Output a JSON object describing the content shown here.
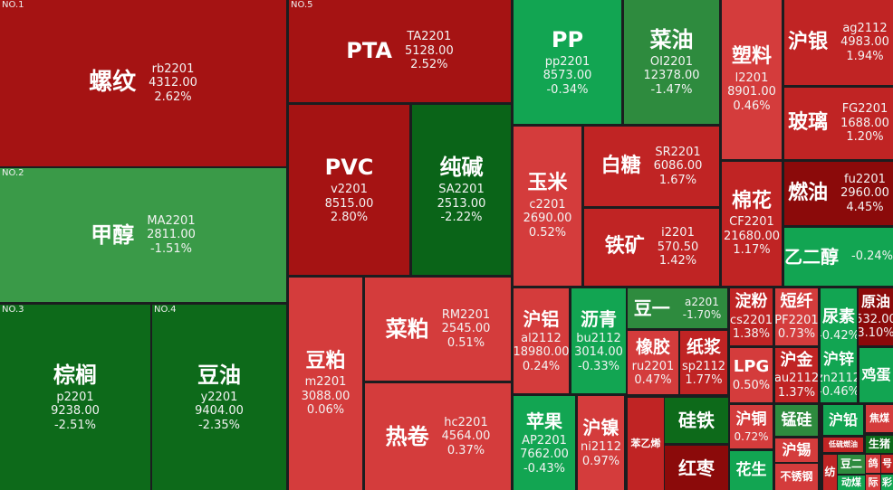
{
  "colors": {
    "deep_red": "#a51313",
    "red": "#d43c3c",
    "mid_red": "#c02424",
    "dark_red": "#8b0a0a",
    "dark_green": "#0d6a1a",
    "green": "#2e8b3e",
    "bright_green": "#12a552",
    "background": "#1b1d1f"
  },
  "cells": [
    {
      "rank": "NO.1",
      "name": "螺纹",
      "code": "rb2201",
      "price": "4312.00",
      "change": "2.62%",
      "color": "#a51313"
    },
    {
      "rank": "NO.2",
      "name": "甲醇",
      "code": "MA2201",
      "price": "2811.00",
      "change": "-1.51%",
      "color": "#3a9a48"
    },
    {
      "rank": "NO.3",
      "name": "棕榈",
      "code": "p2201",
      "price": "9238.00",
      "change": "-2.51%",
      "color": "#0d6a1a"
    },
    {
      "rank": "NO.4",
      "name": "豆油",
      "code": "y2201",
      "price": "9404.00",
      "change": "-2.35%",
      "color": "#0d6a1a"
    },
    {
      "rank": "NO.5",
      "name": "PTA",
      "code": "TA2201",
      "price": "5128.00",
      "change": "2.52%",
      "color": "#a51313"
    },
    {
      "name": "PVC",
      "code": "v2201",
      "price": "8515.00",
      "change": "2.80%",
      "color": "#a51313"
    },
    {
      "name": "纯碱",
      "code": "SA2201",
      "price": "2513.00",
      "change": "-2.22%",
      "color": "#0a6418"
    },
    {
      "name": "豆粕",
      "code": "m2201",
      "price": "3088.00",
      "change": "0.06%",
      "color": "#d43c3c"
    },
    {
      "name": "菜粕",
      "code": "RM2201",
      "price": "2545.00",
      "change": "0.51%",
      "color": "#d43c3c"
    },
    {
      "name": "热卷",
      "code": "hc2201",
      "price": "4564.00",
      "change": "0.37%",
      "color": "#d43c3c"
    },
    {
      "name": "PP",
      "code": "pp2201",
      "price": "8573.00",
      "change": "-0.34%",
      "color": "#12a552"
    },
    {
      "name": "菜油",
      "code": "OI2201",
      "price": "12378.00",
      "change": "-1.47%",
      "color": "#2e8b3e"
    },
    {
      "name": "塑料",
      "code": "l2201",
      "price": "8901.00",
      "change": "0.46%",
      "color": "#d43c3c"
    },
    {
      "name": "沪银",
      "code": "ag2112",
      "price": "4983.00",
      "change": "1.94%",
      "color": "#c02424"
    },
    {
      "name": "玻璃",
      "code": "FG2201",
      "price": "1688.00",
      "change": "1.20%",
      "color": "#c02424"
    },
    {
      "name": "玉米",
      "code": "c2201",
      "price": "2690.00",
      "change": "0.52%",
      "color": "#d43c3c"
    },
    {
      "name": "白糖",
      "code": "SR2201",
      "price": "6086.00",
      "change": "1.67%",
      "color": "#c02424"
    },
    {
      "name": "铁矿",
      "code": "i2201",
      "price": "570.50",
      "change": "1.42%",
      "color": "#c02424"
    },
    {
      "name": "棉花",
      "code": "CF2201",
      "price": "21680.00",
      "change": "1.17%",
      "color": "#c02424"
    },
    {
      "name": "燃油",
      "code": "fu2201",
      "price": "2960.00",
      "change": "4.45%",
      "color": "#8b0a0a"
    },
    {
      "name": "乙二醇",
      "change": "-0.24%",
      "color": "#12a552"
    },
    {
      "name": "沪铝",
      "code": "al2112",
      "price": "18980.00",
      "change": "0.24%",
      "color": "#d43c3c"
    },
    {
      "name": "沥青",
      "code": "bu2112",
      "price": "3014.00",
      "change": "-0.33%",
      "color": "#12a552"
    },
    {
      "name": "苹果",
      "code": "AP2201",
      "price": "7662.00",
      "change": "-0.43%",
      "color": "#12a552"
    },
    {
      "name": "沪镍",
      "code": "ni2112",
      "change": "0.97%",
      "color": "#d43c3c"
    },
    {
      "name": "豆一",
      "code": "a2201",
      "change": "-1.70%",
      "color": "#2e8b3e"
    },
    {
      "name": "橡胶",
      "code": "ru2201",
      "change": "0.47%",
      "color": "#d43c3c"
    },
    {
      "name": "纸浆",
      "code": "sp2112",
      "change": "1.77%",
      "color": "#c02424"
    },
    {
      "name": "淀粉",
      "code": "cs2201",
      "change": "1.38%",
      "color": "#c02424"
    },
    {
      "name": "短纤",
      "code": "PF2201",
      "change": "0.73%",
      "color": "#d43c3c"
    },
    {
      "name": "尿素",
      "change": "-0.42%",
      "color": "#12a552"
    },
    {
      "name": "原油",
      "price": "532.00",
      "change": "3.10%",
      "color": "#8b0a0a"
    },
    {
      "name": "LPG",
      "change": "0.50%",
      "color": "#d43c3c"
    },
    {
      "name": "沪金",
      "code": "au2112",
      "change": "1.37%",
      "color": "#c02424"
    },
    {
      "name": "沪锌",
      "code": "zn2112",
      "change": "-0.46%",
      "color": "#12a552"
    },
    {
      "name": "鸡蛋",
      "color": "#12a552"
    },
    {
      "name": "苯乙烯",
      "color": "#c02424"
    },
    {
      "name": "硅铁",
      "color": "#0d6a1a"
    },
    {
      "name": "红枣",
      "color": "#8b0a0a"
    },
    {
      "name": "沪铜",
      "change": "0.72%",
      "color": "#d43c3c"
    },
    {
      "name": "花生",
      "color": "#12a552"
    },
    {
      "name": "锰硅",
      "color": "#2e8b3e"
    },
    {
      "name": "沪锡",
      "color": "#d43c3c"
    },
    {
      "name": "不锈钢",
      "color": "#d43c3c"
    },
    {
      "name": "沪铅",
      "color": "#12a552"
    },
    {
      "name": "焦煤",
      "color": "#d43c3c"
    },
    {
      "name": "低硫燃油",
      "color": "#c02424"
    },
    {
      "name": "生猪",
      "color": "#0d6a1a"
    },
    {
      "name": "纺",
      "color": "#c02424"
    },
    {
      "name": "豆二",
      "color": "#2e8b3e"
    },
    {
      "name": "动煤",
      "color": "#12a552"
    },
    {
      "name": "鸽",
      "color": "#d43c3c"
    },
    {
      "name": "号",
      "color": "#c02424"
    },
    {
      "name": "际",
      "color": "#d43c3c"
    },
    {
      "name": "彩",
      "color": "#12a552"
    }
  ]
}
